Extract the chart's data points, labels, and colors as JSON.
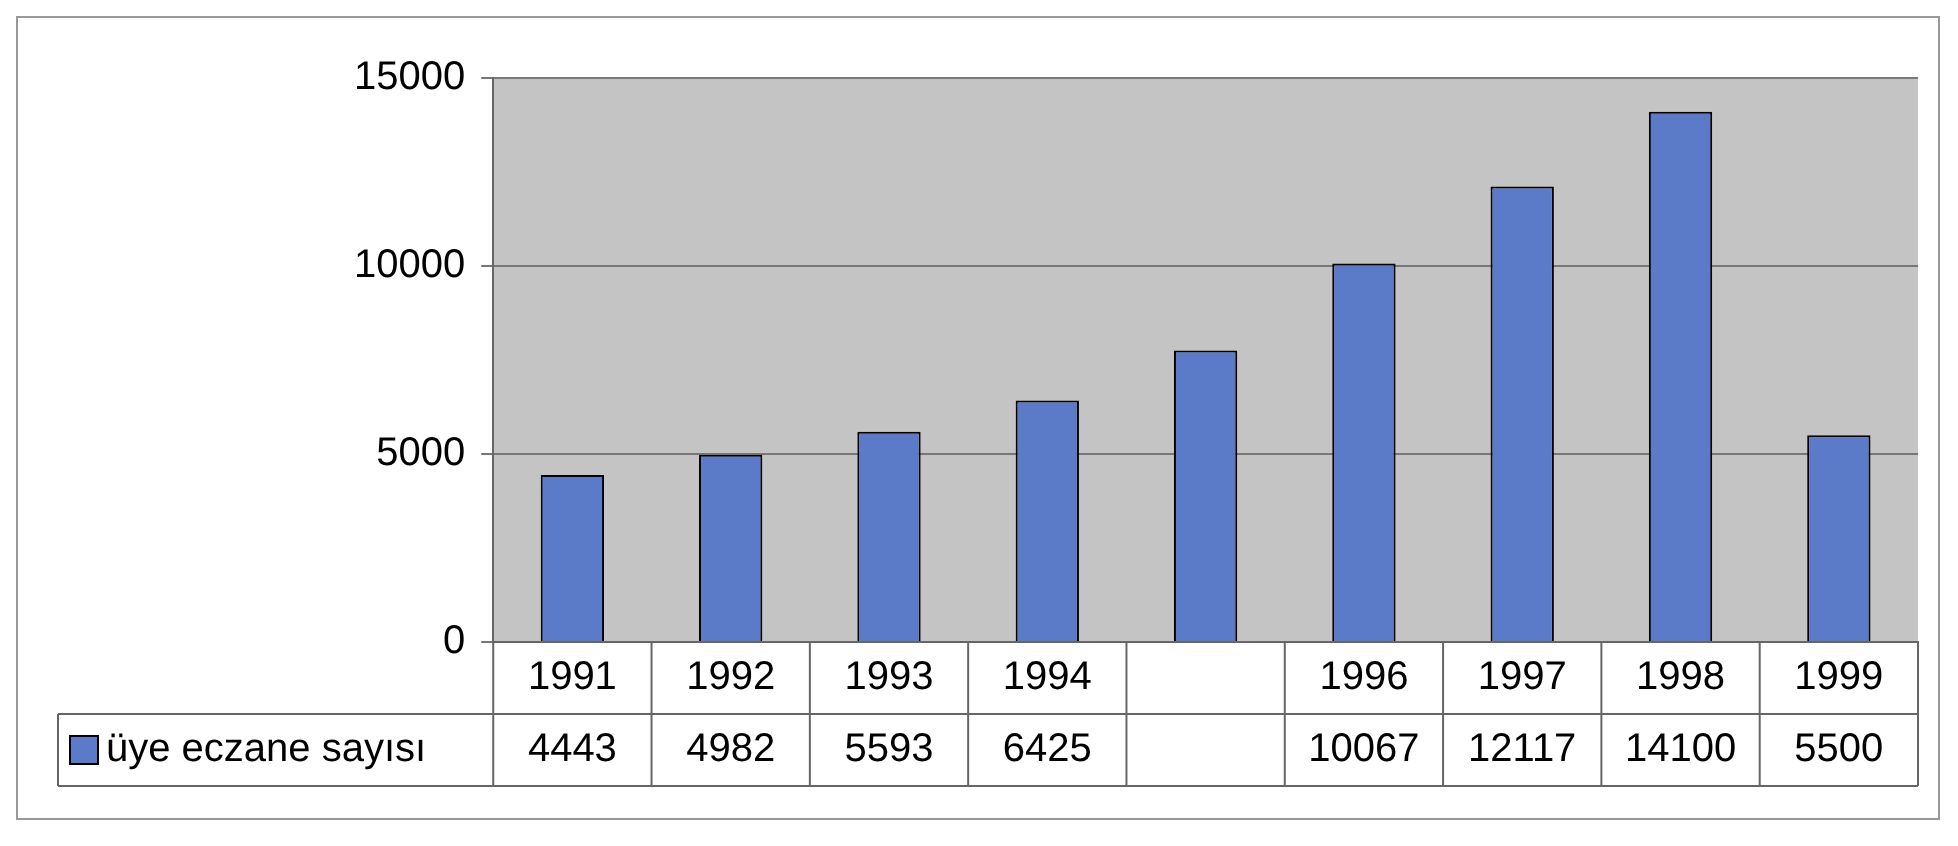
{
  "chart_data": {
    "type": "bar",
    "categories": [
      "1991",
      "1992",
      "1993",
      "1994",
      null,
      "1996",
      "1997",
      "1998",
      "1999"
    ],
    "series": [
      {
        "name": "üye eczane sayısı",
        "color": "#5b7bc8",
        "values": [
          4443,
          4982,
          5593,
          6425,
          7750,
          10067,
          12117,
          14100,
          5500
        ],
        "value_labels": [
          "4443",
          "4982",
          "5593",
          "6425",
          null,
          "10067",
          "12117",
          "14100",
          "5500"
        ]
      }
    ],
    "ylim": [
      0,
      15000
    ],
    "yticks": [
      0,
      5000,
      10000,
      15000
    ],
    "grid": "y",
    "legend": "bottom"
  }
}
